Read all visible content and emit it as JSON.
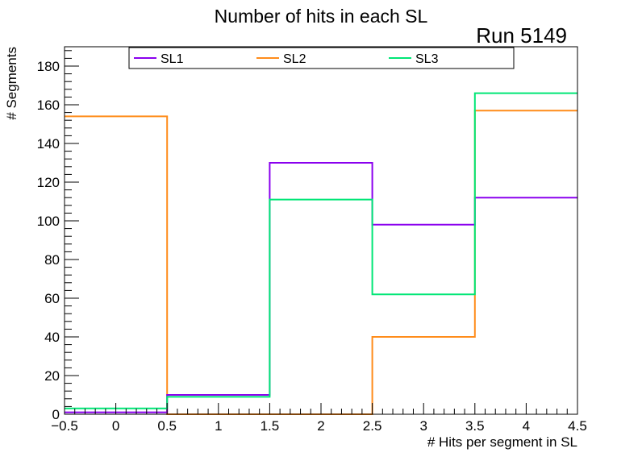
{
  "chart_data": {
    "type": "histogram",
    "title": "Number of hits in each SL",
    "annotation": "Run 5149",
    "xlabel": "# Hits per segment in SL",
    "ylabel": "# Segments",
    "xlim": [
      -0.5,
      4.5
    ],
    "ylim": [
      0,
      190
    ],
    "bin_edges": [
      -0.5,
      0.5,
      1.5,
      2.5,
      3.5,
      4.5
    ],
    "x_ticks": [
      "−0.5",
      "0",
      "0.5",
      "1",
      "1.5",
      "2",
      "2.5",
      "3",
      "3.5",
      "4",
      "4.5"
    ],
    "x_tick_values": [
      -0.5,
      0,
      0.5,
      1,
      1.5,
      2,
      2.5,
      3,
      3.5,
      4,
      4.5
    ],
    "y_ticks": [
      "0",
      "20",
      "40",
      "60",
      "80",
      "100",
      "120",
      "140",
      "160",
      "180"
    ],
    "y_tick_values": [
      0,
      20,
      40,
      60,
      80,
      100,
      120,
      140,
      160,
      180
    ],
    "legend_position": "top",
    "series": [
      {
        "name": "SL1",
        "color": "#8a00ee",
        "values": [
          1,
          10,
          130,
          98,
          112
        ]
      },
      {
        "name": "SL2",
        "color": "#ff8c1a",
        "values": [
          154,
          0,
          0,
          40,
          157
        ]
      },
      {
        "name": "SL3",
        "color": "#00e676",
        "values": [
          3,
          9,
          111,
          62,
          166
        ]
      }
    ]
  }
}
